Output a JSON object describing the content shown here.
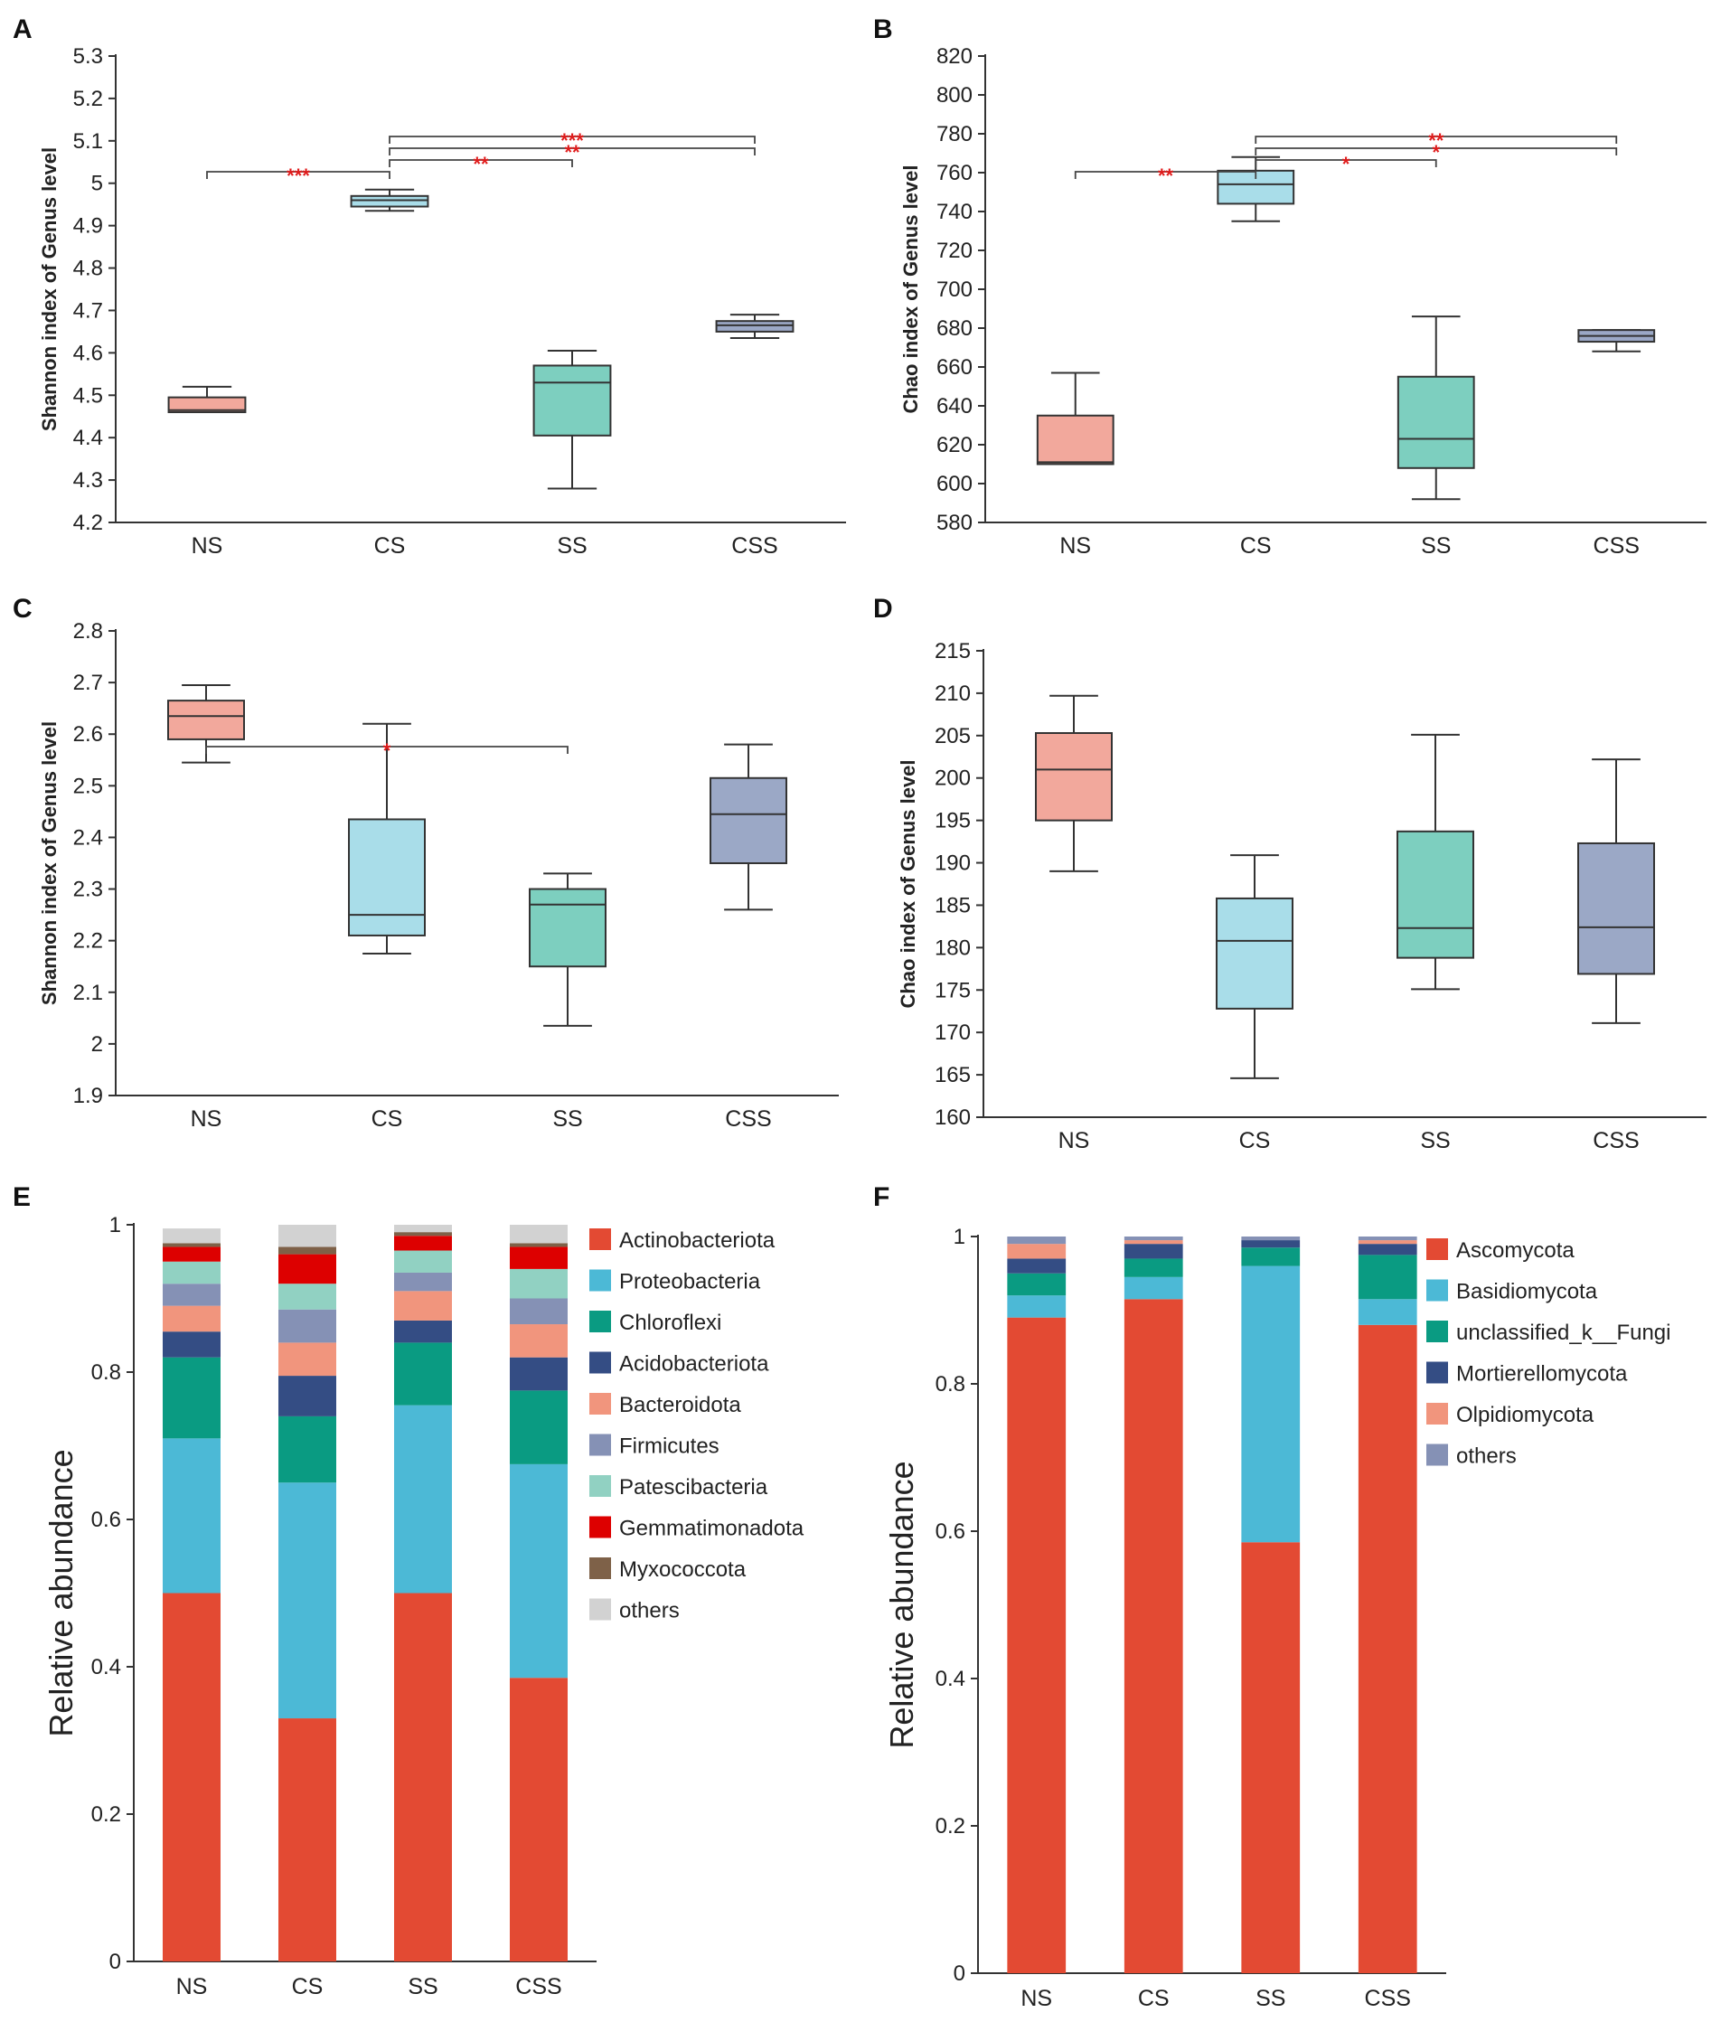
{
  "colors": {
    "NS": "#f2a89c",
    "CS": "#a9dde9",
    "SS": "#7dcfbf",
    "CSS": "#9ba8c6",
    "sig": "#e01b1b"
  },
  "chart_data": [
    {
      "panel": "A",
      "type": "box",
      "ylabel": "Shannon index of Genus level",
      "categories": [
        "NS",
        "CS",
        "SS",
        "CSS"
      ],
      "ylim": [
        4.2,
        5.3
      ],
      "yticks": [
        "4.2",
        "4.3",
        "4.4",
        "4.5",
        "4.6",
        "4.7",
        "4.8",
        "4.9",
        "5",
        "5.1",
        "5.2",
        "5.3"
      ],
      "boxes": [
        {
          "min": 4.46,
          "q1": 4.46,
          "median": 4.465,
          "q3": 4.495,
          "max": 4.52
        },
        {
          "min": 4.935,
          "q1": 4.945,
          "median": 4.96,
          "q3": 4.97,
          "max": 4.985
        },
        {
          "min": 4.28,
          "q1": 4.405,
          "median": 4.53,
          "q3": 4.57,
          "max": 4.605
        },
        {
          "min": 4.635,
          "q1": 4.65,
          "median": 4.665,
          "q3": 4.675,
          "max": 4.69
        }
      ],
      "comparisons": [
        {
          "from": 0,
          "to": 1,
          "label": "***",
          "level": 0
        },
        {
          "from": 1,
          "to": 2,
          "label": "**",
          "level": 1
        },
        {
          "from": 1,
          "to": 3,
          "label": "**",
          "level": 2
        },
        {
          "from": 1,
          "to": 3,
          "label": "***",
          "level": 3
        }
      ]
    },
    {
      "panel": "B",
      "type": "box",
      "ylabel": "Chao index of Genus level",
      "categories": [
        "NS",
        "CS",
        "SS",
        "CSS"
      ],
      "ylim": [
        580,
        820
      ],
      "yticks": [
        "580",
        "600",
        "620",
        "640",
        "660",
        "680",
        "700",
        "720",
        "740",
        "760",
        "780",
        "800",
        "820"
      ],
      "boxes": [
        {
          "min": 610,
          "q1": 610,
          "median": 611,
          "q3": 635,
          "max": 657
        },
        {
          "min": 735,
          "q1": 744,
          "median": 754,
          "q3": 761,
          "max": 768
        },
        {
          "min": 592,
          "q1": 608,
          "median": 623,
          "q3": 655,
          "max": 686
        },
        {
          "min": 668,
          "q1": 673,
          "median": 676,
          "q3": 679,
          "max": 679
        }
      ],
      "comparisons": [
        {
          "from": 0,
          "to": 1,
          "label": "**",
          "level": 0
        },
        {
          "from": 1,
          "to": 2,
          "label": "*",
          "level": 1
        },
        {
          "from": 1,
          "to": 3,
          "label": "*",
          "level": 2
        },
        {
          "from": 1,
          "to": 3,
          "label": "**",
          "level": 3
        }
      ]
    },
    {
      "panel": "C",
      "type": "box",
      "ylabel": "Shannon index of Genus level",
      "categories": [
        "NS",
        "CS",
        "SS",
        "CSS"
      ],
      "ylim": [
        1.9,
        2.8
      ],
      "yticks": [
        "1.9",
        "2",
        "2.1",
        "2.2",
        "2.3",
        "2.4",
        "2.5",
        "2.6",
        "2.7",
        "2.8"
      ],
      "boxes": [
        {
          "min": 2.545,
          "q1": 2.59,
          "median": 2.635,
          "q3": 2.665,
          "max": 2.695
        },
        {
          "min": 2.175,
          "q1": 2.21,
          "median": 2.25,
          "q3": 2.435,
          "max": 2.62
        },
        {
          "min": 2.035,
          "q1": 2.15,
          "median": 2.27,
          "q3": 2.3,
          "max": 2.33
        },
        {
          "min": 2.26,
          "q1": 2.35,
          "median": 2.445,
          "q3": 2.515,
          "max": 2.58
        }
      ],
      "comparisons": [
        {
          "from": 0,
          "to": 2,
          "label": "*",
          "level": 0
        }
      ]
    },
    {
      "panel": "D",
      "type": "box",
      "ylabel": "Chao index of Genus level",
      "categories": [
        "NS",
        "CS",
        "SS",
        "CSS"
      ],
      "ylim": [
        160,
        215
      ],
      "yticks": [
        "160",
        "165",
        "170",
        "175",
        "180",
        "185",
        "190",
        "195",
        "200",
        "205",
        "210",
        "215"
      ],
      "boxes": [
        {
          "min": 189,
          "q1": 195,
          "median": 201,
          "q3": 205.3,
          "max": 209.7
        },
        {
          "min": 164.6,
          "q1": 172.8,
          "median": 180.8,
          "q3": 185.8,
          "max": 190.9
        },
        {
          "min": 175.1,
          "q1": 178.8,
          "median": 182.3,
          "q3": 193.7,
          "max": 205.1
        },
        {
          "min": 171.1,
          "q1": 176.9,
          "median": 182.4,
          "q3": 192.3,
          "max": 202.2
        }
      ],
      "comparisons": []
    },
    {
      "panel": "E",
      "type": "stacked-bar",
      "ylabel": "Relative abundance",
      "categories": [
        "NS",
        "CS",
        "SS",
        "CSS"
      ],
      "ylim": [
        0,
        1
      ],
      "yticks": [
        "0",
        "0.2",
        "0.4",
        "0.6",
        "0.8",
        "1"
      ],
      "series": [
        {
          "name": "Actinobacteriota",
          "color": "#e34a33",
          "values": [
            0.5,
            0.33,
            0.5,
            0.385
          ]
        },
        {
          "name": "Proteobacteria",
          "color": "#4cb9d6",
          "values": [
            0.21,
            0.32,
            0.255,
            0.29
          ]
        },
        {
          "name": "Chloroflexi",
          "color": "#0a9b82",
          "values": [
            0.11,
            0.09,
            0.085,
            0.1
          ]
        },
        {
          "name": "Acidobacteriota",
          "color": "#344d84",
          "values": [
            0.035,
            0.055,
            0.03,
            0.045
          ]
        },
        {
          "name": "Bacteroidota",
          "color": "#f1957d",
          "values": [
            0.035,
            0.045,
            0.04,
            0.045
          ]
        },
        {
          "name": "Firmicutes",
          "color": "#8591b5",
          "values": [
            0.03,
            0.045,
            0.025,
            0.035
          ]
        },
        {
          "name": "Patescibacteria",
          "color": "#91d1c2",
          "values": [
            0.03,
            0.035,
            0.03,
            0.04
          ]
        },
        {
          "name": "Gemmatimonadota",
          "color": "#dd0000",
          "values": [
            0.02,
            0.04,
            0.02,
            0.03
          ]
        },
        {
          "name": "Myxococcota",
          "color": "#7e6148",
          "values": [
            0.005,
            0.01,
            0.005,
            0.005
          ]
        },
        {
          "name": "others",
          "color": "#d2d2d2",
          "values": [
            0.02,
            0.03,
            0.01,
            0.025
          ]
        }
      ]
    },
    {
      "panel": "F",
      "type": "stacked-bar",
      "ylabel": "Relative abundance",
      "categories": [
        "NS",
        "CS",
        "SS",
        "CSS"
      ],
      "ylim": [
        0,
        1
      ],
      "yticks": [
        "0",
        "0.2",
        "0.4",
        "0.6",
        "0.8",
        "1"
      ],
      "series": [
        {
          "name": "Ascomycota",
          "color": "#e34a33",
          "values": [
            0.89,
            0.915,
            0.585,
            0.88
          ]
        },
        {
          "name": "Basidiomycota",
          "color": "#4cb9d6",
          "values": [
            0.03,
            0.03,
            0.375,
            0.035
          ]
        },
        {
          "name": "unclassified_k__Fungi",
          "color": "#0a9b82",
          "values": [
            0.03,
            0.025,
            0.025,
            0.06
          ]
        },
        {
          "name": "Mortierellomycota",
          "color": "#344d84",
          "values": [
            0.02,
            0.02,
            0.01,
            0.015
          ]
        },
        {
          "name": "Olpidiomycota",
          "color": "#f1957d",
          "values": [
            0.02,
            0.005,
            0.0,
            0.005
          ]
        },
        {
          "name": "others",
          "color": "#8591b5",
          "values": [
            0.01,
            0.005,
            0.005,
            0.005
          ]
        }
      ]
    }
  ]
}
